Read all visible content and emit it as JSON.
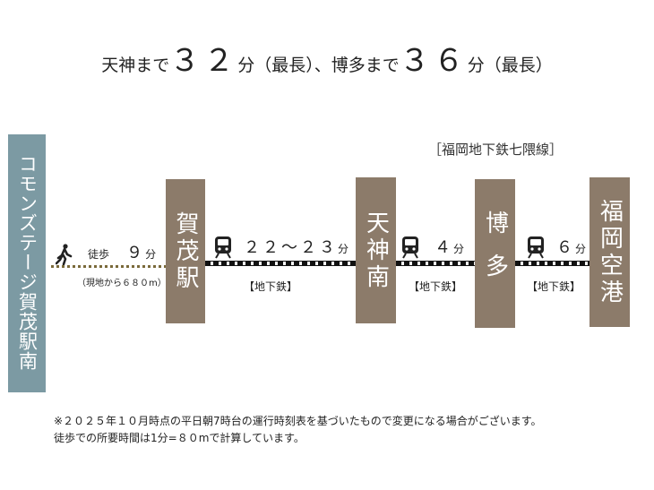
{
  "headline": {
    "part1": "天神まで",
    "minutes_tenjin": "３２",
    "unit1": "分（最長）、博多まで",
    "minutes_hakata": "３６",
    "unit2": "分（最長）"
  },
  "line_name": "［福岡地下鉄七隈線］",
  "origin": {
    "name": "コモンズテージ賀茂駅南"
  },
  "walk": {
    "label": "徒歩",
    "minutes": "９",
    "unit": "分",
    "distance": "（現地から６８０m）"
  },
  "stations": [
    {
      "name": "賀茂駅"
    },
    {
      "name": "天神南"
    },
    {
      "name": "博多"
    },
    {
      "name": "福岡空港"
    }
  ],
  "segments": [
    {
      "minutes": "２２～２３",
      "unit": "分",
      "mode": "【地下鉄】"
    },
    {
      "minutes": "４",
      "unit": "分",
      "mode": "【地下鉄】"
    },
    {
      "minutes": "６",
      "unit": "分",
      "mode": "【地下鉄】"
    }
  ],
  "notes": [
    "※２０２５年１０月時点の平日朝7時台の運行時刻表を基づいたもので変更になる場合がございます。",
    "徒歩での所要時間は1分=８０mで計算しています。"
  ],
  "colors": {
    "station": "#8c7b6a",
    "origin": "#7c9aa3",
    "walk_line": "#7a6a3a"
  },
  "icons": {
    "walk": "walking-person-icon",
    "train": "train-icon"
  }
}
